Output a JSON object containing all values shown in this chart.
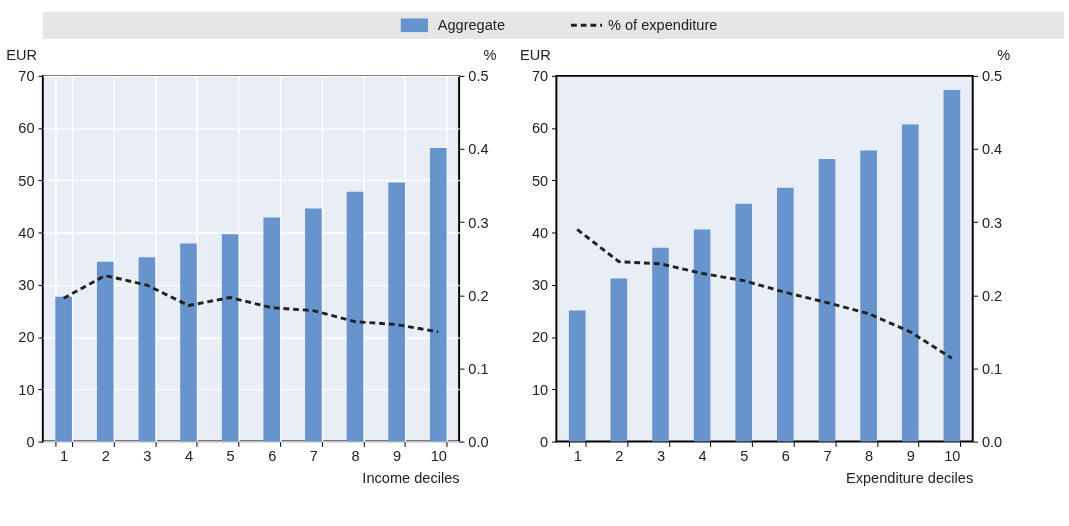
{
  "chart_data": [
    {
      "type": "bar",
      "categories": [
        "1",
        "2",
        "3",
        "4",
        "5",
        "6",
        "7",
        "8",
        "9",
        "10"
      ],
      "xlabel": "Income deciles",
      "ylabel": "EUR",
      "y2label": "%",
      "series": [
        {
          "name": "Aggregate",
          "color": "#6794cc",
          "values": [
            27.7,
            34.4,
            35.3,
            37.9,
            39.7,
            42.9,
            44.6,
            47.8,
            49.6,
            56.2
          ]
        },
        {
          "name": "% of expenditure",
          "type": "line",
          "axis": "y2",
          "line_style": "dashed",
          "color": "#222222",
          "values": [
            0.196,
            0.227,
            0.214,
            0.186,
            0.197,
            0.183,
            0.179,
            0.164,
            0.16,
            0.15
          ]
        }
      ],
      "ylim": [
        0,
        70
      ],
      "yticks": [
        0,
        10,
        20,
        30,
        40,
        50,
        60,
        70
      ],
      "y2lim": [
        0,
        0.5
      ],
      "y2ticks": [
        {
          "value": 0,
          "label": "0.0"
        },
        0.1,
        0.2,
        0.3,
        0.4,
        0.5
      ],
      "grid": true,
      "legend": "top"
    },
    {
      "type": "bar",
      "categories": [
        "1",
        "2",
        "3",
        "4",
        "5",
        "6",
        "7",
        "8",
        "9",
        "10"
      ],
      "xlabel": "Expenditure deciles",
      "ylabel": "EUR",
      "y2label": "%",
      "series": [
        {
          "color": "#6794cc",
          "values": [
            25.1,
            31.2,
            37.1,
            40.6,
            45.5,
            48.6,
            54.1,
            55.7,
            60.7,
            67.3
          ]
        },
        {
          "type": "line",
          "axis": "y2",
          "line_style": "dashed",
          "color": "#222222",
          "values": [
            0.29,
            0.246,
            0.243,
            0.23,
            0.22,
            0.204,
            0.19,
            0.175,
            0.15,
            0.114
          ]
        }
      ],
      "ylim": [
        0,
        70
      ],
      "yticks": [
        0,
        10,
        20,
        30,
        40,
        50,
        60,
        70
      ],
      "y2lim": [
        0,
        0.5
      ],
      "y2ticks": [
        {
          "value": 0,
          "label": "0.0"
        },
        0.1,
        0.2,
        0.3,
        0.4,
        0.5
      ],
      "grid": false
    }
  ]
}
